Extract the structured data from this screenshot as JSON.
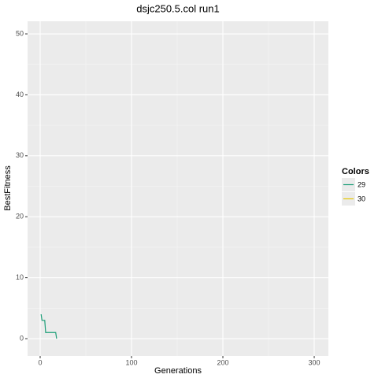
{
  "chart_data": {
    "type": "line",
    "title": "dsjc250.5.col run1",
    "x_label": "Generations",
    "y_label": "BestFitness",
    "legend_title": "Colors",
    "x": [
      1,
      2,
      5,
      6,
      17,
      18
    ],
    "series": [
      {
        "name": "29",
        "color": "#1b9e77",
        "values": [
          4,
          3,
          3,
          1,
          1,
          0
        ]
      },
      {
        "name": "30",
        "color": "#e6c700",
        "values": [
          null,
          null,
          null,
          null,
          null,
          null
        ]
      }
    ],
    "xlim": [
      -13.8,
      315.5
    ],
    "xticks": [
      0,
      100,
      200,
      300
    ],
    "ylim": [
      -2.84,
      52.07
    ],
    "yticks": [
      0,
      10,
      20,
      30,
      40,
      50
    ],
    "grid": true,
    "legend": "right"
  }
}
